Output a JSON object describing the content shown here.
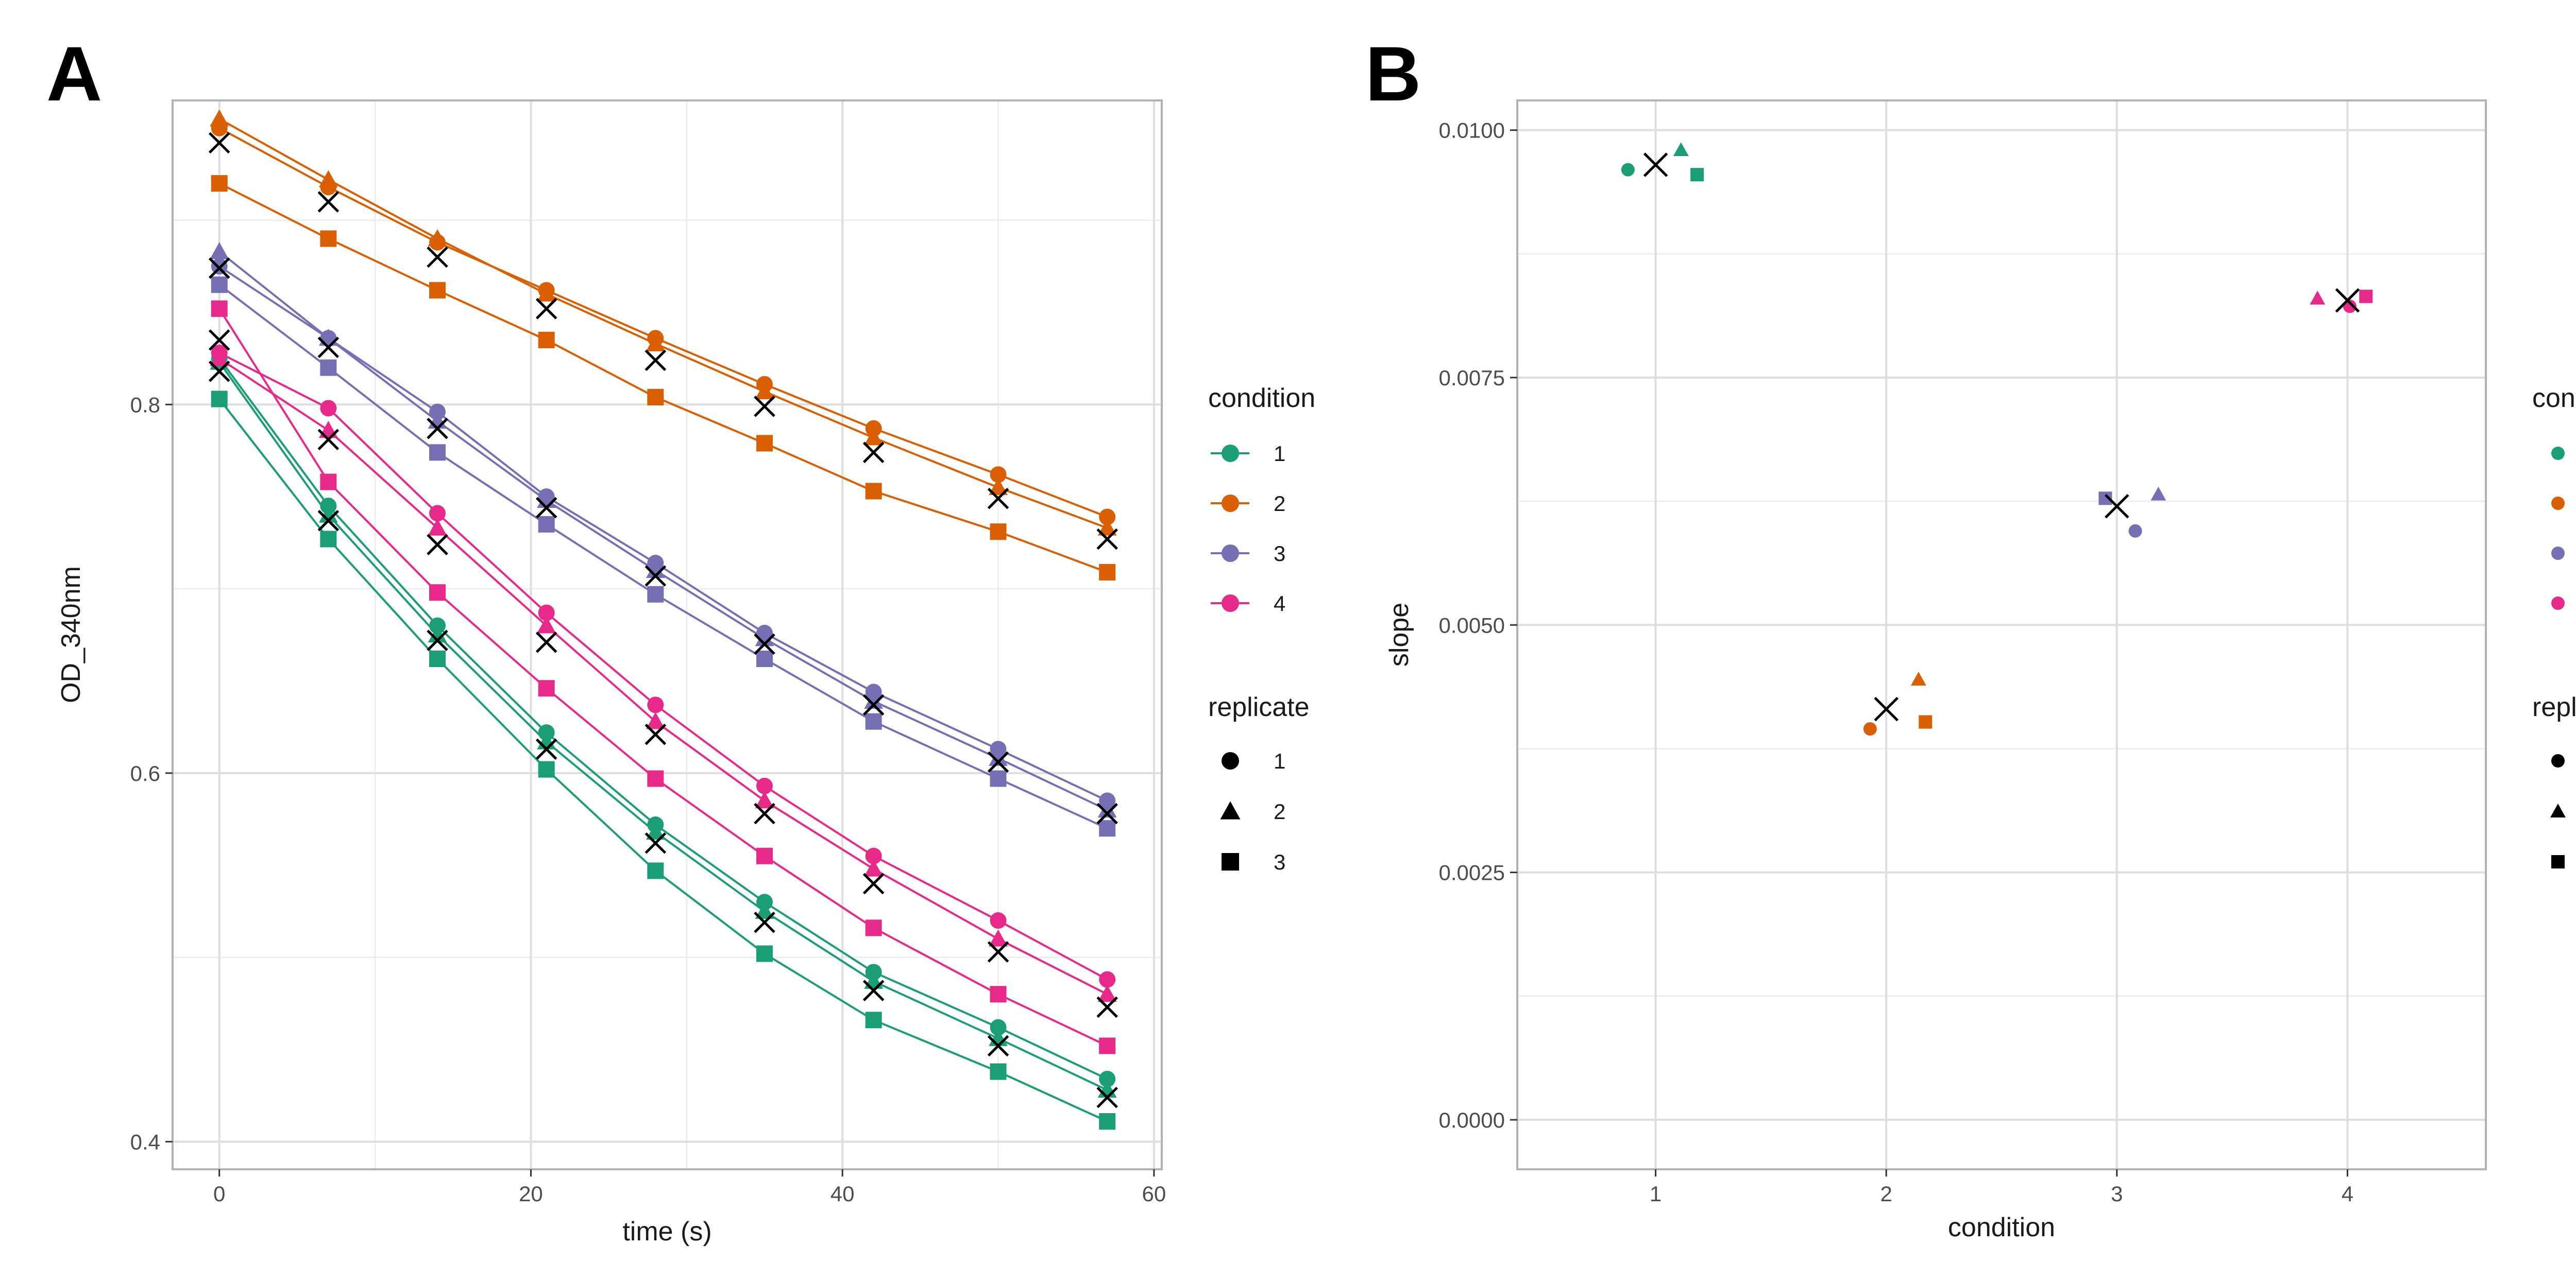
{
  "panel_labels": [
    "A",
    "B"
  ],
  "colors": {
    "condition_1": "#1b9e77",
    "condition_2": "#d95f02",
    "condition_3": "#7570b3",
    "condition_4": "#e7298a",
    "mean_marker": "#000000"
  },
  "legends": {
    "condition_title": "condition",
    "condition_labels": [
      "1",
      "2",
      "3",
      "4"
    ],
    "replicate_title": "replicate",
    "replicate_labels": [
      "1",
      "2",
      "3"
    ],
    "replicate_shapes": [
      "circle",
      "triangle",
      "square"
    ]
  },
  "chart_data": [
    {
      "panel": "A",
      "type": "line",
      "xlabel": "time (s)",
      "ylabel": "OD_340nm",
      "xlim": [
        -3,
        60.5
      ],
      "ylim": [
        0.385,
        0.965
      ],
      "xticks": [
        0,
        20,
        40,
        60
      ],
      "yticks": [
        0.4,
        0.6,
        0.8
      ],
      "ytick_labels": [
        "0.4",
        "0.6",
        "0.8"
      ],
      "grid": true,
      "legend_placement": "right",
      "x": [
        0,
        7,
        14,
        21,
        28,
        35,
        42,
        50,
        57
      ],
      "series": [
        {
          "condition": "1",
          "replicate": "1",
          "values": [
            0.825,
            0.745,
            0.68,
            0.622,
            0.572,
            0.53,
            0.492,
            0.462,
            0.434
          ]
        },
        {
          "condition": "1",
          "replicate": "2",
          "values": [
            0.823,
            0.74,
            0.675,
            0.617,
            0.568,
            0.525,
            0.487,
            0.456,
            0.428
          ]
        },
        {
          "condition": "1",
          "replicate": "3",
          "values": [
            0.803,
            0.727,
            0.662,
            0.602,
            0.547,
            0.502,
            0.466,
            0.438,
            0.411
          ]
        },
        {
          "condition": "2",
          "replicate": "1",
          "values": [
            0.95,
            0.918,
            0.888,
            0.862,
            0.836,
            0.811,
            0.787,
            0.762,
            0.739
          ]
        },
        {
          "condition": "2",
          "replicate": "2",
          "values": [
            0.955,
            0.922,
            0.89,
            0.86,
            0.833,
            0.807,
            0.782,
            0.755,
            0.733
          ]
        },
        {
          "condition": "2",
          "replicate": "3",
          "values": [
            0.92,
            0.89,
            0.862,
            0.835,
            0.804,
            0.779,
            0.753,
            0.731,
            0.709
          ]
        },
        {
          "condition": "3",
          "replicate": "1",
          "values": [
            0.875,
            0.836,
            0.796,
            0.75,
            0.714,
            0.676,
            0.644,
            0.613,
            0.585
          ]
        },
        {
          "condition": "3",
          "replicate": "2",
          "values": [
            0.883,
            0.836,
            0.791,
            0.748,
            0.71,
            0.673,
            0.639,
            0.608,
            0.58
          ]
        },
        {
          "condition": "3",
          "replicate": "3",
          "values": [
            0.865,
            0.82,
            0.774,
            0.735,
            0.697,
            0.662,
            0.628,
            0.597,
            0.57
          ]
        },
        {
          "condition": "4",
          "replicate": "1",
          "values": [
            0.828,
            0.798,
            0.741,
            0.687,
            0.637,
            0.593,
            0.555,
            0.52,
            0.488
          ]
        },
        {
          "condition": "4",
          "replicate": "2",
          "values": [
            0.825,
            0.786,
            0.733,
            0.68,
            0.628,
            0.585,
            0.548,
            0.51,
            0.48
          ]
        },
        {
          "condition": "4",
          "replicate": "3",
          "values": [
            0.852,
            0.758,
            0.698,
            0.646,
            0.597,
            0.555,
            0.516,
            0.48,
            0.452
          ]
        }
      ],
      "means": [
        {
          "condition": "1",
          "values": [
            0.818,
            0.737,
            0.672,
            0.613,
            0.562,
            0.519,
            0.482,
            0.452,
            0.424
          ]
        },
        {
          "condition": "2",
          "values": [
            0.942,
            0.91,
            0.88,
            0.852,
            0.824,
            0.799,
            0.774,
            0.749,
            0.727
          ]
        },
        {
          "condition": "3",
          "values": [
            0.874,
            0.831,
            0.787,
            0.744,
            0.707,
            0.67,
            0.637,
            0.606,
            0.578
          ]
        },
        {
          "condition": "4",
          "values": [
            0.835,
            0.781,
            0.724,
            0.671,
            0.621,
            0.578,
            0.54,
            0.503,
            0.473
          ]
        }
      ]
    },
    {
      "panel": "B",
      "type": "scatter",
      "xlabel": "condition",
      "ylabel": "slope",
      "xlim": [
        0.4,
        4.6
      ],
      "ylim": [
        -0.0005,
        0.0103
      ],
      "xticks": [
        1,
        2,
        3,
        4
      ],
      "xtick_labels": [
        "1",
        "2",
        "3",
        "4"
      ],
      "yticks": [
        0,
        0.0025,
        0.005,
        0.0075,
        0.01
      ],
      "ytick_labels": [
        "0.0000",
        "0.0025",
        "0.0050",
        "0.0075",
        "0.0100"
      ],
      "grid": true,
      "legend_placement": "right",
      "points": [
        {
          "condition": "1",
          "replicate": "1",
          "x": 0.88,
          "y": 0.0096
        },
        {
          "condition": "1",
          "replicate": "2",
          "x": 1.11,
          "y": 0.0098
        },
        {
          "condition": "1",
          "replicate": "3",
          "x": 1.18,
          "y": 0.00955
        },
        {
          "condition": "2",
          "replicate": "1",
          "x": 1.93,
          "y": 0.00395
        },
        {
          "condition": "2",
          "replicate": "2",
          "x": 2.14,
          "y": 0.00445
        },
        {
          "condition": "2",
          "replicate": "3",
          "x": 2.17,
          "y": 0.00402
        },
        {
          "condition": "3",
          "replicate": "1",
          "x": 3.08,
          "y": 0.00595
        },
        {
          "condition": "3",
          "replicate": "2",
          "x": 3.18,
          "y": 0.00632
        },
        {
          "condition": "3",
          "replicate": "3",
          "x": 2.95,
          "y": 0.00628
        },
        {
          "condition": "4",
          "replicate": "1",
          "x": 4.01,
          "y": 0.00822
        },
        {
          "condition": "4",
          "replicate": "2",
          "x": 3.87,
          "y": 0.0083
        },
        {
          "condition": "4",
          "replicate": "3",
          "x": 4.08,
          "y": 0.00832
        }
      ],
      "means": [
        {
          "condition": "1",
          "x": 1,
          "y": 0.00965
        },
        {
          "condition": "2",
          "x": 2,
          "y": 0.00415
        },
        {
          "condition": "3",
          "x": 3,
          "y": 0.0062
        },
        {
          "condition": "4",
          "x": 4,
          "y": 0.00828
        }
      ]
    }
  ]
}
